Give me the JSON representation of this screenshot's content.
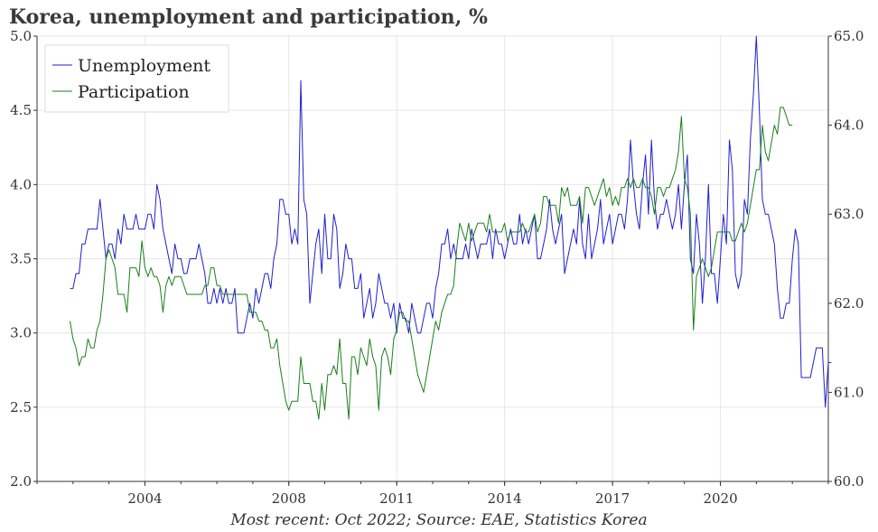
{
  "chart_data": {
    "type": "line",
    "title": "Korea, unemployment and participation, %",
    "source": "Most recent: Oct 2022; Source: EAE, Statistics Korea",
    "x_range": [
      2001.0,
      2023.0
    ],
    "x_ticks": [
      2004,
      2008,
      2011,
      2014,
      2017,
      2020
    ],
    "y_left": {
      "range": [
        2.0,
        5.0
      ],
      "ticks": [
        "2.0",
        "2.5",
        "3.0",
        "3.5",
        "4.0",
        "4.5",
        "5.0"
      ]
    },
    "y_right": {
      "range": [
        60.0,
        65.0
      ],
      "ticks": [
        "60.0",
        "61.0",
        "62.0",
        "63.0",
        "64.0",
        "65.0"
      ]
    },
    "grid": true,
    "legend": {
      "placement": "top-left"
    },
    "series": [
      {
        "name": "Unemployment",
        "axis": "left",
        "color": "#1f1fd0",
        "start": 2001.917,
        "step": 0.08333,
        "values": [
          3.3,
          3.3,
          3.4,
          3.4,
          3.6,
          3.6,
          3.7,
          3.7,
          3.7,
          3.7,
          3.9,
          3.7,
          3.5,
          3.6,
          3.6,
          3.5,
          3.7,
          3.6,
          3.8,
          3.7,
          3.7,
          3.7,
          3.8,
          3.7,
          3.7,
          3.7,
          3.8,
          3.8,
          3.7,
          4.0,
          3.9,
          3.7,
          3.6,
          3.5,
          3.4,
          3.6,
          3.5,
          3.5,
          3.4,
          3.4,
          3.5,
          3.5,
          3.5,
          3.6,
          3.5,
          3.4,
          3.2,
          3.2,
          3.3,
          3.2,
          3.3,
          3.2,
          3.3,
          3.2,
          3.2,
          3.3,
          3.0,
          3.0,
          3.0,
          3.1,
          3.2,
          3.1,
          3.3,
          3.2,
          3.3,
          3.4,
          3.4,
          3.3,
          3.5,
          3.6,
          3.9,
          3.9,
          3.8,
          3.8,
          3.6,
          3.7,
          3.6,
          4.7,
          3.9,
          3.8,
          3.2,
          3.4,
          3.6,
          3.7,
          3.4,
          3.8,
          3.5,
          3.5,
          3.8,
          3.7,
          3.3,
          3.4,
          3.6,
          3.5,
          3.5,
          3.3,
          3.3,
          3.4,
          3.1,
          3.2,
          3.3,
          3.1,
          3.2,
          3.4,
          3.3,
          3.2,
          3.2,
          3.1,
          3.2,
          3.0,
          3.2,
          3.1,
          3.1,
          3.0,
          3.2,
          3.1,
          3.0,
          3.0,
          3.1,
          3.2,
          3.2,
          3.1,
          3.3,
          3.4,
          3.6,
          3.6,
          3.7,
          3.5,
          3.6,
          3.5,
          3.5,
          3.5,
          3.6,
          3.5,
          3.7,
          3.6,
          3.5,
          3.6,
          3.6,
          3.6,
          3.7,
          3.5,
          3.7,
          3.6,
          3.6,
          3.5,
          3.6,
          3.7,
          3.6,
          3.6,
          3.8,
          3.6,
          3.7,
          3.6,
          3.7,
          3.8,
          3.5,
          3.5,
          3.6,
          3.7,
          3.9,
          3.7,
          3.6,
          3.7,
          3.8,
          3.4,
          3.5,
          3.6,
          3.7,
          3.6,
          3.9,
          3.6,
          3.5,
          3.8,
          3.5,
          3.6,
          3.7,
          3.9,
          3.6,
          3.7,
          3.8,
          3.6,
          3.7,
          3.8,
          3.8,
          3.7,
          3.9,
          4.3,
          4.0,
          3.8,
          3.7,
          4.0,
          4.2,
          3.8,
          4.3,
          3.9,
          3.7,
          3.8,
          3.8,
          3.9,
          3.8,
          3.7,
          3.8,
          4.0,
          3.7,
          4.0,
          4.2,
          3.5,
          3.4,
          3.8,
          3.6,
          3.2,
          3.5,
          4.0,
          3.4,
          3.4,
          3.2,
          3.5,
          3.8,
          3.6,
          4.3,
          4.1,
          3.4,
          3.3,
          3.4,
          3.9,
          3.8,
          4.3,
          4.6,
          5.0,
          4.5,
          3.9,
          3.8,
          3.8,
          3.7,
          3.6,
          3.3,
          3.1,
          3.1,
          3.2,
          3.2,
          3.5,
          3.7,
          3.6,
          2.7,
          2.7,
          2.7,
          2.7,
          2.8,
          2.9,
          2.9,
          2.9,
          2.5,
          2.8,
          2.8
        ]
      },
      {
        "name": "Participation",
        "axis": "right",
        "color": "#1a7f1a",
        "start": 2001.917,
        "step": 0.08333,
        "values": [
          61.8,
          61.6,
          61.5,
          61.3,
          61.4,
          61.4,
          61.6,
          61.5,
          61.5,
          61.7,
          61.8,
          62.1,
          62.5,
          62.6,
          62.5,
          62.4,
          62.1,
          62.1,
          62.1,
          61.9,
          62.4,
          62.4,
          62.4,
          62.3,
          62.7,
          62.4,
          62.3,
          62.4,
          62.3,
          62.3,
          62.2,
          61.9,
          62.2,
          62.3,
          62.2,
          62.3,
          62.3,
          62.3,
          62.2,
          62.1,
          62.1,
          62.1,
          62.1,
          62.1,
          62.1,
          62.2,
          62.2,
          62.4,
          62.4,
          62.2,
          62.2,
          62.1,
          62.1,
          62.1,
          62.1,
          62.1,
          62.1,
          62.1,
          62.1,
          62.1,
          61.9,
          61.9,
          61.9,
          61.8,
          61.8,
          61.7,
          61.7,
          61.5,
          61.5,
          61.6,
          61.3,
          61.1,
          60.9,
          60.8,
          60.9,
          60.9,
          60.9,
          61.4,
          61.1,
          61.1,
          61.1,
          60.9,
          60.9,
          60.7,
          61.1,
          60.8,
          61.2,
          61.2,
          61.3,
          61.2,
          61.6,
          61.1,
          61.1,
          60.7,
          61.4,
          61.4,
          61.2,
          61.5,
          61.4,
          61.3,
          61.6,
          61.4,
          61.3,
          60.8,
          61.4,
          61.5,
          61.4,
          61.2,
          61.6,
          61.7,
          61.9,
          61.9,
          61.8,
          61.8,
          61.6,
          61.4,
          61.2,
          61.1,
          61.0,
          61.2,
          61.4,
          61.6,
          61.8,
          61.7,
          61.9,
          62.0,
          62.1,
          62.1,
          62.2,
          62.6,
          62.9,
          62.8,
          62.7,
          62.9,
          62.7,
          62.8,
          62.9,
          62.9,
          62.9,
          62.8,
          63.0,
          62.8,
          62.8,
          62.8,
          62.8,
          62.9,
          62.7,
          62.8,
          62.8,
          62.8,
          62.8,
          62.9,
          62.8,
          62.8,
          62.9,
          63.0,
          62.8,
          62.9,
          63.2,
          63.2,
          63.1,
          63.1,
          63.1,
          62.9,
          63.3,
          63.2,
          63.3,
          63.1,
          63.1,
          63.1,
          63.2,
          62.9,
          63.3,
          63.3,
          63.2,
          63.1,
          63.2,
          63.3,
          63.4,
          63.2,
          63.3,
          63.1,
          63.2,
          63.1,
          63.3,
          63.3,
          63.4,
          63.3,
          63.4,
          63.3,
          63.3,
          63.4,
          63.3,
          63.3,
          63.2,
          63.0,
          63.3,
          63.3,
          63.2,
          63.3,
          63.3,
          63.4,
          63.5,
          63.7,
          64.1,
          63.4,
          63.3,
          63.0,
          61.7,
          62.3,
          62.4,
          62.5,
          62.4,
          62.3,
          62.4,
          62.6,
          62.8,
          62.8,
          62.8,
          62.8,
          62.8,
          62.7,
          62.7,
          62.8,
          62.9,
          62.8,
          62.9,
          63.1,
          63.3,
          63.5,
          63.5,
          64.0,
          63.7,
          63.6,
          63.8,
          64.0,
          63.9,
          64.2,
          64.2,
          64.1,
          64.0,
          64.0
        ]
      }
    ]
  }
}
